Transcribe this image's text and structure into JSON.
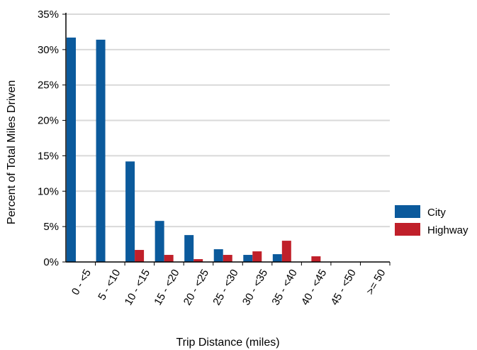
{
  "chart_data": {
    "type": "bar",
    "title": "",
    "xlabel": "Trip Distance (miles)",
    "ylabel": "Percent of Total Miles Driven",
    "ylim": [
      0,
      35
    ],
    "yticks": [
      "0%",
      "5%",
      "10%",
      "15%",
      "20%",
      "25%",
      "30%",
      "35%"
    ],
    "grid": "horizontal",
    "legend_position": "right",
    "categories": [
      "0 - <5",
      "5 - <10",
      "10 - <15",
      "15 - <20",
      "20 - <25",
      "25 - <30",
      "30 - <35",
      "35 - <40",
      "40 - <45",
      "45 - <50",
      ">= 50"
    ],
    "series": [
      {
        "name": "City",
        "color": "#0b5a9c",
        "values": [
          31.7,
          31.4,
          14.2,
          5.8,
          3.8,
          1.8,
          1.0,
          1.1,
          0,
          0,
          0
        ]
      },
      {
        "name": "Highway",
        "color": "#c0202a",
        "values": [
          0,
          0,
          1.7,
          1.0,
          0.4,
          1.0,
          1.5,
          3.0,
          0.8,
          0,
          0
        ]
      }
    ]
  }
}
